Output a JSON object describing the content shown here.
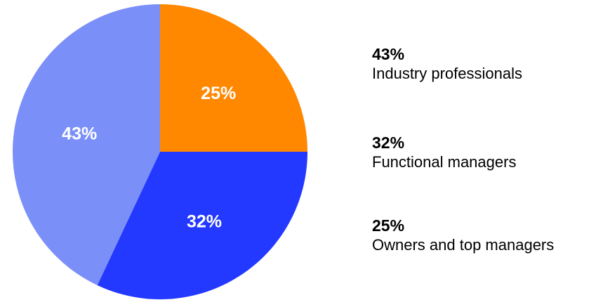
{
  "chart_data": {
    "type": "pie",
    "title": "",
    "slices": [
      {
        "label": "Owners and top managers",
        "value": 25,
        "display": "25%",
        "color": "#ff8800"
      },
      {
        "label": "Functional managers",
        "value": 32,
        "display": "32%",
        "color": "#2439ff"
      },
      {
        "label": "Industry professionals",
        "value": 43,
        "display": "43%",
        "color": "#7b8ff8"
      }
    ],
    "start_angle": "12 o'clock",
    "direction": "clockwise",
    "legend": {
      "placement": "right",
      "entries": [
        {
          "value": "43%",
          "label": "Industry professionals"
        },
        {
          "value": "32%",
          "label": "Functional managers"
        },
        {
          "value": "25%",
          "label": "Owners and top managers"
        }
      ]
    }
  }
}
